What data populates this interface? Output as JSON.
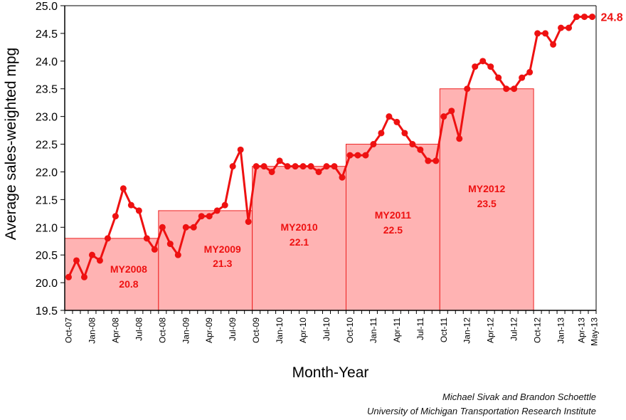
{
  "chart_data": {
    "type": "line",
    "xlabel": "Month-Year",
    "ylabel": "Average sales-weighted mpg",
    "ylim": [
      19.5,
      25.0
    ],
    "y_ticks": [
      "19.5",
      "20.0",
      "20.5",
      "21.0",
      "21.5",
      "22.0",
      "22.5",
      "23.0",
      "23.5",
      "24.0",
      "24.5",
      "25.0"
    ],
    "x_ticks": [
      "Oct-07",
      "Jan-08",
      "Apr-08",
      "Jul-08",
      "Oct-08",
      "Jan-09",
      "Apr-09",
      "Jul-09",
      "Oct-09",
      "Jan-10",
      "Apr-10",
      "Jul-10",
      "Oct-10",
      "Jan-11",
      "Apr-11",
      "Jul-11",
      "Oct-11",
      "Jan-12",
      "Apr-12",
      "Jul-12",
      "Oct-12",
      "Jan-13",
      "Apr-13",
      "May-13"
    ],
    "x_range": [
      "Oct-07",
      "May-13"
    ],
    "series": [
      {
        "color": "#ee1111",
        "start_month": "Oct-07",
        "values": [
          20.1,
          20.4,
          20.1,
          20.5,
          20.4,
          20.8,
          21.2,
          21.7,
          21.4,
          21.3,
          20.8,
          20.6,
          21.0,
          20.7,
          20.5,
          21.0,
          21.0,
          21.2,
          21.2,
          21.3,
          21.4,
          22.1,
          22.4,
          21.1,
          22.1,
          22.1,
          22.0,
          22.2,
          22.1,
          22.1,
          22.1,
          22.1,
          22.0,
          22.1,
          22.1,
          21.9,
          22.3,
          22.3,
          22.3,
          22.5,
          22.7,
          23.0,
          22.9,
          22.7,
          22.5,
          22.4,
          22.2,
          22.2,
          23.0,
          23.1,
          22.6,
          23.5,
          23.9,
          24.0,
          23.9,
          23.7,
          23.5,
          23.5,
          23.7,
          23.8,
          24.5,
          24.5,
          24.3,
          24.6,
          24.6,
          24.8,
          24.8,
          24.8
        ]
      }
    ],
    "end_label": "24.8",
    "model_years": [
      {
        "name": "MY2008",
        "value": 20.8,
        "start": "Oct-07",
        "end": "Oct-08",
        "label_value": "20.8"
      },
      {
        "name": "MY2009",
        "value": 21.3,
        "start": "Oct-08",
        "end": "Oct-09",
        "label_value": "21.3"
      },
      {
        "name": "MY2010",
        "value": 22.1,
        "start": "Oct-09",
        "end": "Oct-10",
        "label_value": "22.1"
      },
      {
        "name": "MY2011",
        "value": 22.5,
        "start": "Oct-10",
        "end": "Oct-11",
        "label_value": "22.5"
      },
      {
        "name": "MY2012",
        "value": 23.5,
        "start": "Oct-11",
        "end": "Oct-12",
        "label_value": "23.5"
      }
    ],
    "bar_fill": "#ffb3b3",
    "bar_stroke": "#ee2222",
    "grid": false
  },
  "credits": {
    "line1": "Michael Sivak and Brandon Schoettle",
    "line2": "University of Michigan Transportation Research Institute"
  }
}
